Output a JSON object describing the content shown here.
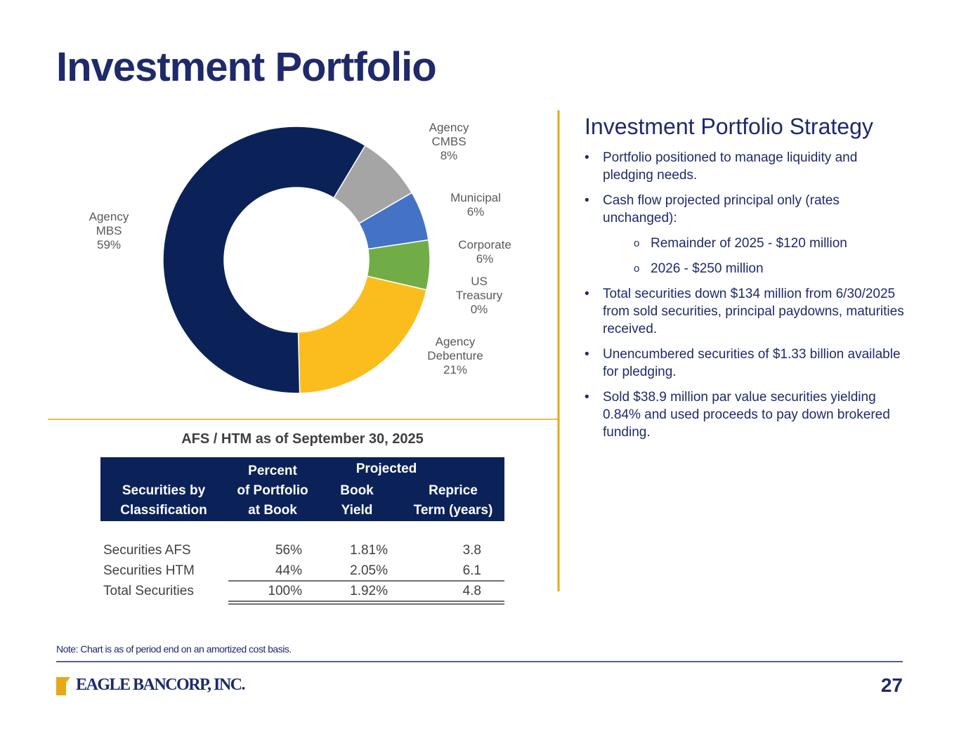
{
  "title": "Investment Portfolio",
  "chart_data": {
    "type": "pie",
    "categories": [
      "Agency CMBS",
      "Municipal",
      "Corporate",
      "US Treasury",
      "Agency Debenture",
      "Agency MBS"
    ],
    "values": [
      8,
      6,
      6,
      0,
      21,
      59
    ],
    "value_labels": [
      "8%",
      "6%",
      "6%",
      "0%",
      "21%",
      "59%"
    ],
    "colors": [
      "#a5a5a5",
      "#4472c4",
      "#70ad47",
      "#7f7f7f",
      "#fbbc1e",
      "#0b2259"
    ]
  },
  "table": {
    "caption": "AFS / HTM as of September 30, 2025",
    "group": "Projected",
    "columns": [
      [
        "Securities by",
        "Classification"
      ],
      [
        "Percent",
        "of Portfolio",
        "at Book"
      ],
      [
        "Book",
        "Yield"
      ],
      [
        "Reprice",
        "Term (years)"
      ]
    ],
    "rows": [
      [
        "Securities AFS",
        "56%",
        "1.81%",
        "3.8"
      ],
      [
        "Securities HTM",
        "44%",
        "2.05%",
        "6.1"
      ],
      [
        "Total Securities",
        "100%",
        "1.92%",
        "4.8"
      ]
    ]
  },
  "strategy": {
    "heading": "Investment Portfolio Strategy",
    "bullets": [
      {
        "text": "Portfolio positioned to manage liquidity and pledging needs."
      },
      {
        "text": "Cash flow projected principal only (rates unchanged):",
        "subitems": [
          "Remainder of 2025 - $120 million",
          "2026 - $250 million"
        ]
      },
      {
        "text": "Total securities down $134 million from 6/30/2025 from sold securities, principal paydowns, maturities received."
      },
      {
        "text": "Unencumbered securities of $1.33 billion available for pledging."
      },
      {
        "text": "Sold $38.9 million par value securities yielding 0.84% and used proceeds to pay down brokered funding."
      }
    ]
  },
  "footnote": "Note: Chart is as of period end on an amortized cost basis.",
  "logo": "EAGLE BANCORP, INC.",
  "page_number": "27"
}
